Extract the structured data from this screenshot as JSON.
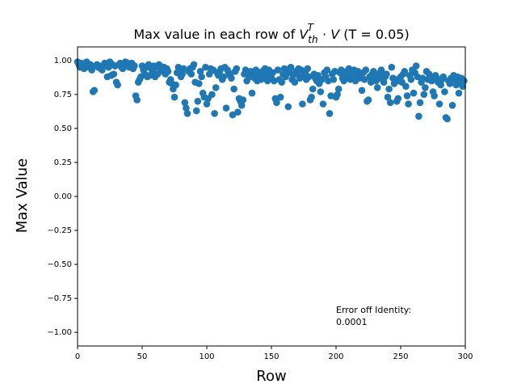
{
  "chart_data": {
    "type": "scatter",
    "title": [
      "Max value in each row of ",
      "V",
      "th",
      "T",
      " · ",
      "V",
      " (T = 0.05)"
    ],
    "xlabel": "Row",
    "ylabel": "Max Value",
    "annotation": [
      "Error off Identity:",
      "0.0001"
    ],
    "color": "#1f77b4",
    "xlim": [
      0,
      300
    ],
    "xticks": [
      0,
      50,
      100,
      150,
      200,
      250,
      300
    ],
    "ylim": [
      -1.1,
      1.1
    ],
    "yticks": [
      {
        "value": -1,
        "label": "−1.00"
      },
      {
        "value": -0.75,
        "label": "−0.75"
      },
      {
        "value": -0.5,
        "label": "−0.50"
      },
      {
        "value": -0.25,
        "label": "−0.25"
      },
      {
        "value": 0,
        "label": "0.00"
      },
      {
        "value": 0.25,
        "label": "0.25"
      },
      {
        "value": 0.5,
        "label": "0.50"
      },
      {
        "value": 0.75,
        "label": "0.75"
      },
      {
        "value": 1,
        "label": "1.00"
      }
    ],
    "x": [
      0,
      1,
      2,
      3,
      4,
      5,
      6,
      7,
      8,
      9,
      10,
      11,
      12,
      13,
      14,
      15,
      16,
      17,
      18,
      19,
      20,
      21,
      22,
      23,
      24,
      25,
      26,
      27,
      28,
      29,
      30,
      31,
      32,
      33,
      34,
      35,
      36,
      37,
      38,
      39,
      40,
      41,
      42,
      43,
      44,
      45,
      46,
      47,
      48,
      49,
      50,
      51,
      52,
      53,
      54,
      55,
      56,
      57,
      58,
      59,
      60,
      61,
      62,
      63,
      64,
      65,
      66,
      67,
      68,
      69,
      70,
      71,
      72,
      73,
      74,
      75,
      76,
      77,
      78,
      79,
      80,
      81,
      82,
      83,
      84,
      85,
      86,
      87,
      88,
      89,
      90,
      91,
      92,
      93,
      94,
      95,
      96,
      97,
      98,
      99,
      100,
      101,
      102,
      103,
      104,
      105,
      106,
      107,
      108,
      109,
      110,
      111,
      112,
      113,
      114,
      115,
      116,
      117,
      118,
      119,
      120,
      121,
      122,
      123,
      124,
      125,
      126,
      127,
      128,
      129,
      130,
      131,
      132,
      133,
      134,
      135,
      136,
      137,
      138,
      139,
      140,
      141,
      142,
      143,
      144,
      145,
      146,
      147,
      148,
      149,
      150,
      151,
      152,
      153,
      154,
      155,
      156,
      157,
      158,
      159,
      160,
      161,
      162,
      163,
      164,
      165,
      166,
      167,
      168,
      169,
      170,
      171,
      172,
      173,
      174,
      175,
      176,
      177,
      178,
      179,
      180,
      181,
      182,
      183,
      184,
      185,
      186,
      187,
      188,
      189,
      190,
      191,
      192,
      193,
      194,
      195,
      196,
      197,
      198,
      199,
      200,
      201,
      202,
      203,
      204,
      205,
      206,
      207,
      208,
      209,
      210,
      211,
      212,
      213,
      214,
      215,
      216,
      217,
      218,
      219,
      220,
      221,
      222,
      223,
      224,
      225,
      226,
      227,
      228,
      229,
      230,
      231,
      232,
      233,
      234,
      235,
      236,
      237,
      238,
      239,
      240,
      241,
      242,
      243,
      244,
      245,
      246,
      247,
      248,
      249,
      250,
      251,
      252,
      253,
      254,
      255,
      256,
      257,
      258,
      259,
      260,
      261,
      262,
      263,
      264,
      265,
      266,
      267,
      268,
      269,
      270,
      271,
      272,
      273,
      274,
      275,
      276,
      277,
      278,
      279,
      280,
      281,
      282,
      283,
      284,
      285,
      286,
      287,
      288,
      289,
      290,
      291,
      292,
      293,
      294,
      295,
      296,
      297,
      298,
      299
    ],
    "values": [
      0.99,
      0.97,
      0.95,
      0.98,
      0.96,
      0.94,
      0.97,
      0.99,
      0.96,
      0.95,
      0.97,
      0.93,
      0.77,
      0.78,
      0.96,
      0.97,
      0.95,
      0.96,
      0.94,
      0.93,
      0.96,
      0.98,
      0.97,
      0.88,
      0.95,
      0.99,
      0.89,
      0.97,
      0.9,
      0.96,
      0.84,
      0.82,
      0.97,
      0.98,
      0.95,
      0.94,
      0.96,
      0.99,
      0.97,
      0.98,
      0.95,
      0.97,
      0.98,
      0.94,
      0.96,
      0.74,
      0.71,
      0.84,
      0.86,
      0.88,
      0.96,
      0.93,
      0.9,
      0.95,
      0.88,
      0.97,
      0.89,
      0.94,
      0.92,
      0.96,
      0.88,
      0.95,
      0.9,
      0.97,
      0.96,
      0.93,
      0.92,
      0.95,
      0.9,
      0.94,
      0.92,
      0.84,
      0.86,
      0.83,
      0.79,
      0.73,
      0.82,
      0.91,
      0.95,
      0.93,
      0.88,
      0.9,
      0.94,
      0.69,
      0.65,
      0.61,
      0.92,
      0.94,
      0.9,
      0.95,
      0.97,
      0.84,
      0.63,
      0.7,
      0.83,
      0.92,
      0.88,
      0.76,
      0.73,
      0.95,
      0.68,
      0.72,
      0.9,
      0.94,
      0.75,
      0.93,
      0.61,
      0.8,
      0.91,
      0.89,
      0.92,
      0.94,
      0.86,
      0.88,
      0.95,
      0.65,
      0.93,
      0.91,
      0.89,
      0.87,
      0.6,
      0.79,
      0.92,
      0.94,
      0.62,
      0.72,
      0.7,
      0.67,
      0.71,
      0.9,
      0.93,
      0.85,
      0.91,
      0.88,
      0.92,
      0.76,
      0.9,
      0.87,
      0.93,
      0.85,
      0.89,
      0.91,
      0.86,
      0.92,
      0.88,
      0.94,
      0.9,
      0.85,
      0.93,
      0.89,
      0.87,
      0.91,
      0.85,
      0.72,
      0.69,
      0.93,
      0.86,
      0.73,
      0.84,
      0.9,
      0.94,
      0.88,
      0.93,
      0.66,
      0.91,
      0.95,
      0.86,
      0.89,
      0.84,
      0.92,
      0.9,
      0.94,
      0.87,
      0.93,
      0.68,
      0.89,
      0.91,
      0.86,
      0.94,
      0.88,
      0.71,
      0.73,
      0.79,
      0.9,
      0.87,
      0.85,
      0.89,
      0.83,
      0.77,
      0.86,
      0.68,
      0.91,
      0.88,
      0.93,
      0.85,
      0.61,
      0.74,
      0.9,
      0.86,
      0.92,
      0.73,
      0.75,
      0.79,
      0.91,
      0.93,
      0.87,
      0.85,
      0.9,
      0.92,
      0.88,
      0.94,
      0.86,
      0.91,
      0.89,
      0.93,
      0.85,
      0.9,
      0.92,
      0.87,
      0.89,
      0.78,
      0.91,
      0.86,
      0.93,
      0.7,
      0.71,
      0.88,
      0.84,
      0.9,
      0.92,
      0.87,
      0.85,
      0.8,
      0.89,
      0.91,
      0.93,
      0.86,
      0.84,
      0.88,
      0.9,
      0.73,
      0.79,
      0.69,
      0.95,
      0.87,
      0.83,
      0.86,
      0.7,
      0.72,
      0.85,
      0.88,
      0.84,
      0.9,
      0.92,
      0.81,
      0.74,
      0.68,
      0.89,
      0.86,
      0.93,
      0.76,
      0.91,
      0.96,
      0.88,
      0.59,
      0.69,
      0.84,
      0.87,
      0.75,
      0.8,
      0.92,
      0.86,
      0.9,
      0.88,
      0.85,
      0.77,
      0.74,
      0.89,
      0.87,
      0.84,
      0.68,
      0.82,
      0.86,
      0.88,
      0.77,
      0.58,
      0.57,
      0.85,
      0.83,
      0.87,
      0.67,
      0.89,
      0.86,
      0.82,
      0.88,
      0.76,
      0.84,
      0.87,
      0.81,
      0.85
    ]
  }
}
